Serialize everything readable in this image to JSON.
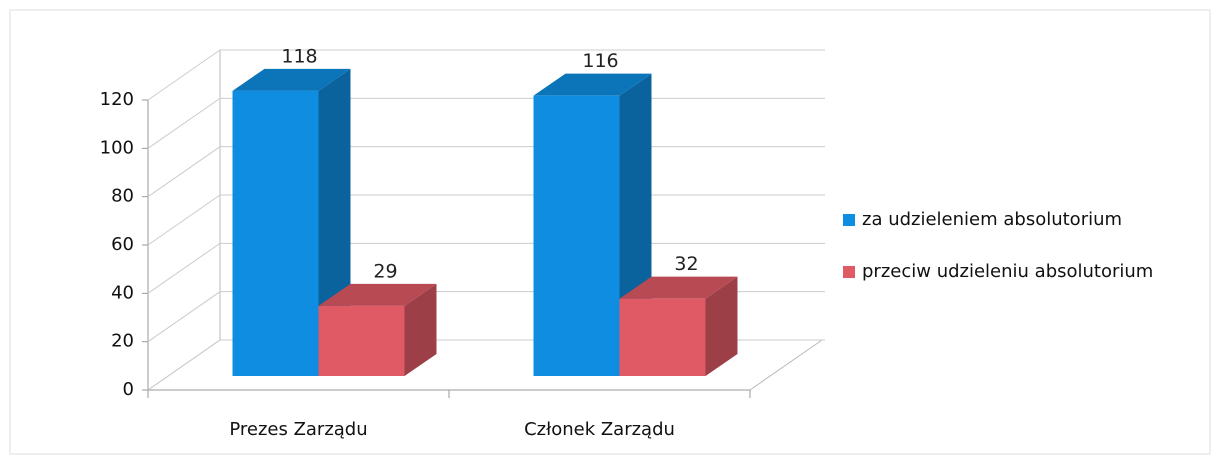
{
  "chart_data": {
    "type": "bar3d",
    "categories": [
      "Prezes Zarządu",
      "Członek Zarządu"
    ],
    "series": [
      {
        "name": "za udzieleniem absolutorium",
        "color": "#0f8de0",
        "values": [
          118,
          116
        ]
      },
      {
        "name": "przeciw udzieleniu absolutorium",
        "color": "#e05a66",
        "values": [
          29,
          32
        ]
      }
    ],
    "ylim": [
      0,
      120
    ],
    "yticks": [
      0,
      20,
      40,
      60,
      80,
      100,
      120
    ],
    "grid": true,
    "legend": "right"
  }
}
